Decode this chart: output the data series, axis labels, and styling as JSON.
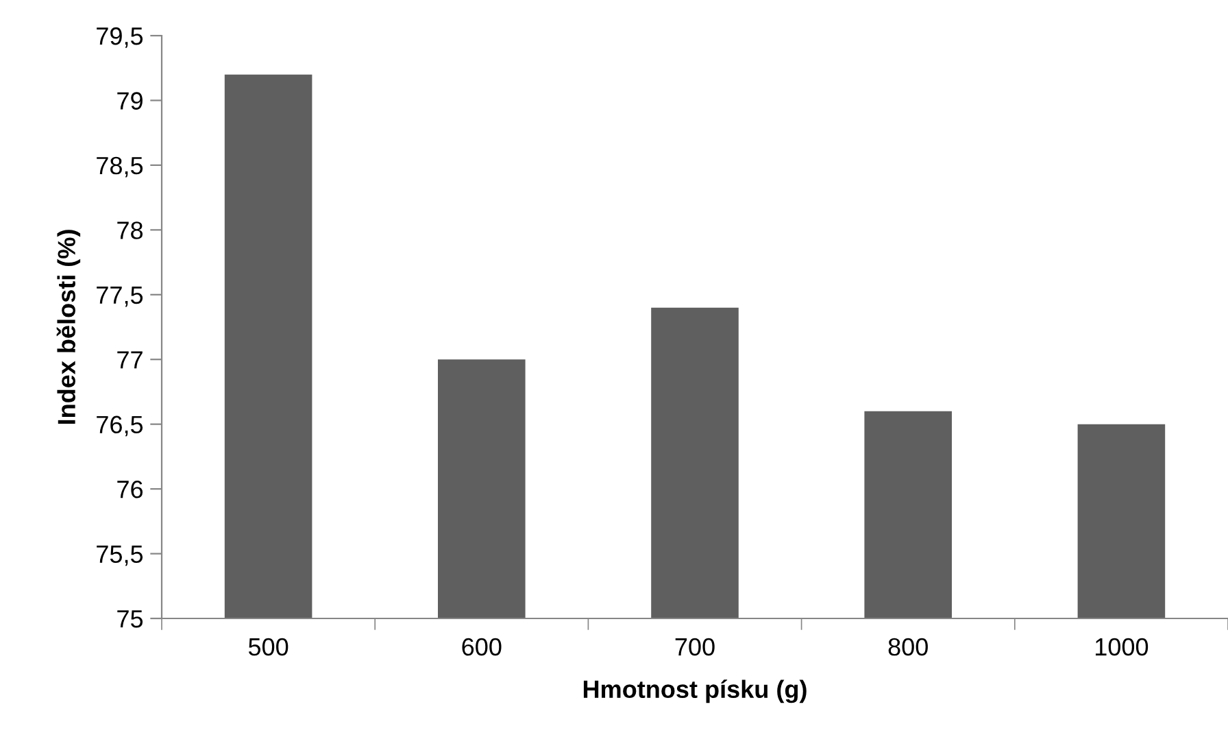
{
  "chart_data": {
    "type": "bar",
    "xlabel": "Hmotnost písku (g)",
    "ylabel": "Index bělosti (%)",
    "categories": [
      "500",
      "600",
      "700",
      "800",
      "1000"
    ],
    "values": [
      79.2,
      77.0,
      77.4,
      76.6,
      76.5
    ],
    "color": "#5f5f5f",
    "ylim": [
      75,
      79.5
    ],
    "yticks": [
      75,
      {
        "value": 75.5,
        "label": "75,5"
      },
      76,
      {
        "value": 76.5,
        "label": "76,5"
      },
      77,
      {
        "value": 77.5,
        "label": "77,5"
      },
      78,
      {
        "value": 78.5,
        "label": "78,5"
      },
      79,
      {
        "value": 79.5,
        "label": "79,5"
      }
    ],
    "grid": false,
    "legend": false
  }
}
